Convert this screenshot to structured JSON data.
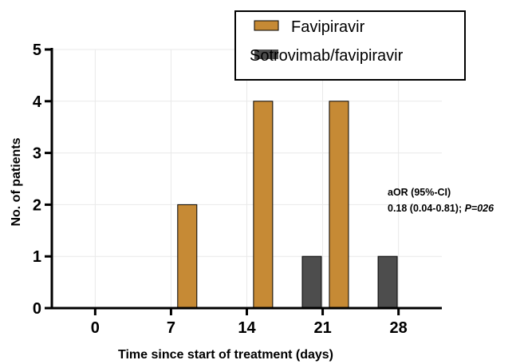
{
  "chart_data": {
    "type": "bar",
    "title": "",
    "xlabel": "Time since start of treatment (days)",
    "ylabel": "No. of patients",
    "x_ticks": [
      "0",
      "7",
      "14",
      "21",
      "28"
    ],
    "xlim": [
      0,
      28
    ],
    "ylim": [
      0,
      5
    ],
    "y_ticks": [
      "0",
      "1",
      "2",
      "3",
      "4",
      "5"
    ],
    "grid": true,
    "legend_position": "top-right",
    "series": [
      {
        "name": "Favipiravir",
        "color": "#c68a35",
        "points": [
          {
            "x": 8.5,
            "y": 2
          },
          {
            "x": 15.5,
            "y": 4
          },
          {
            "x": 22.5,
            "y": 4
          }
        ]
      },
      {
        "name": "Sotrovimab/favipiravir",
        "color": "#4d4d4d",
        "points": [
          {
            "x": 20,
            "y": 1
          },
          {
            "x": 27,
            "y": 1
          }
        ]
      }
    ],
    "annotation": {
      "line1": "aOR (95%-CI)",
      "line2_main": "0.18 (0.04-0.81); ",
      "line2_italic": "P=026"
    }
  }
}
